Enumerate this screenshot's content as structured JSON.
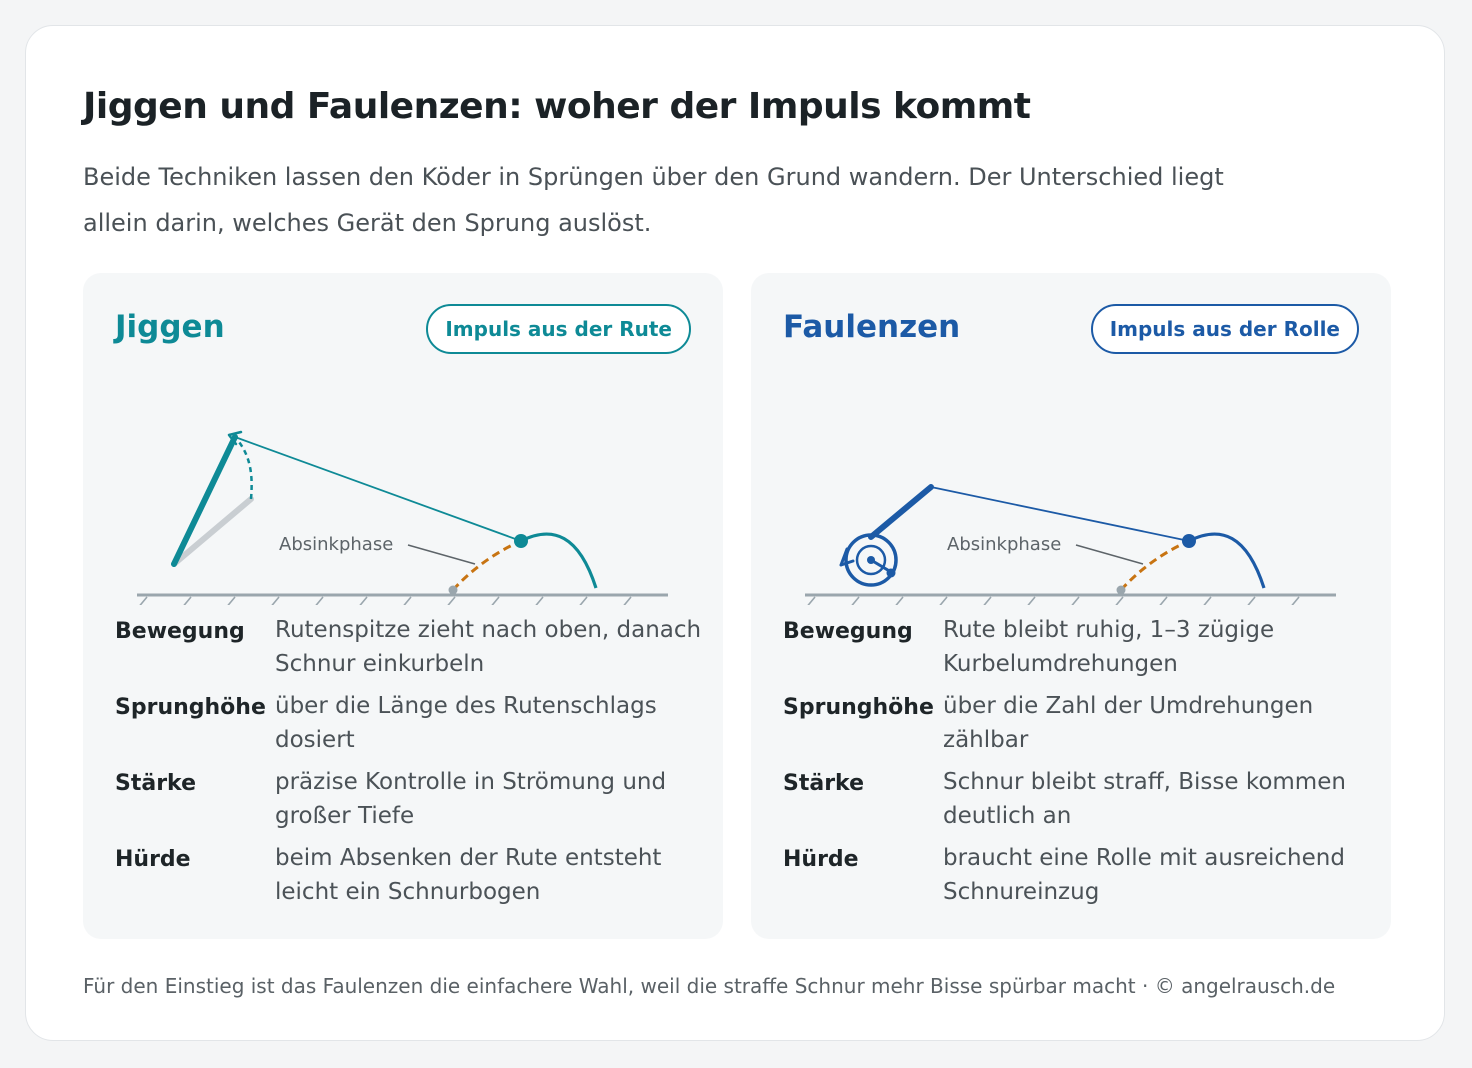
{
  "title": "Jiggen und Faulenzen: woher der Impuls kommt",
  "intro": "Beide Techniken lassen den Köder in Sprüngen über den Grund wandern. Der Unterschied liegt allein darin, welches Gerät den Sprung auslöst.",
  "colors": {
    "jiggen": "#0e8a96",
    "faulenzen": "#1c5aa6",
    "sink_phase": "#c87412",
    "ground": "#9aa6ad"
  },
  "panels": [
    {
      "title": "Jiggen",
      "badge": "Impuls aus der Rute",
      "diagram_label": "Absinkphase",
      "rows": [
        {
          "label": "Bewegung",
          "value": "Rutenspitze zieht nach oben, danach Schnur einkurbeln"
        },
        {
          "label": "Sprunghöhe",
          "value": "über die Länge des Rutenschlags dosiert"
        },
        {
          "label": "Stärke",
          "value": "präzise Kontrolle in Strömung und großer Tiefe"
        },
        {
          "label": "Hürde",
          "value": "beim Absenken der Rute entsteht leicht ein Schnurbogen"
        }
      ]
    },
    {
      "title": "Faulenzen",
      "badge": "Impuls aus der Rolle",
      "diagram_label": "Absinkphase",
      "rows": [
        {
          "label": "Bewegung",
          "value": "Rute bleibt ruhig, 1–3 zügige Kurbelumdrehungen"
        },
        {
          "label": "Sprunghöhe",
          "value": "über die Zahl der Umdrehungen zählbar"
        },
        {
          "label": "Stärke",
          "value": "Schnur bleibt straff, Bisse kommen deutlich an"
        },
        {
          "label": "Hürde",
          "value": "braucht eine Rolle mit ausreichend Schnureinzug"
        }
      ]
    }
  ],
  "footnote": "Für den Einstieg ist das Faulenzen die einfachere Wahl, weil die straffe Schnur mehr Bisse spürbar macht · © angelrausch.de"
}
